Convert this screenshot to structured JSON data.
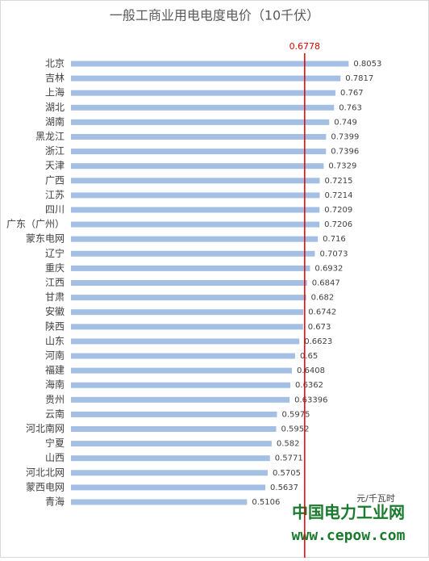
{
  "chart_data": {
    "type": "barh",
    "title": "一般工商业用电电度电价（10千伏）",
    "categories": [
      "北京",
      "吉林",
      "上海",
      "湖北",
      "湖南",
      "黑龙江",
      "浙江",
      "天津",
      "广西",
      "江苏",
      "四川",
      "广东（广州）",
      "蒙东电网",
      "辽宁",
      "重庆",
      "江西",
      "甘肃",
      "安徽",
      "陕西",
      "山东",
      "河南",
      "福建",
      "海南",
      "贵州",
      "云南",
      "河北南网",
      "宁夏",
      "山西",
      "河北北网",
      "蒙西电网",
      "青海"
    ],
    "values": [
      0.8053,
      0.7817,
      0.767,
      0.763,
      0.749,
      0.7399,
      0.7396,
      0.7329,
      0.7215,
      0.7214,
      0.7209,
      0.7206,
      0.716,
      0.7073,
      0.6932,
      0.6847,
      0.682,
      0.6742,
      0.673,
      0.6623,
      0.65,
      0.6408,
      0.6362,
      0.63396,
      0.5975,
      0.5952,
      0.582,
      0.5771,
      0.5705,
      0.5637,
      0.5106
    ],
    "color": "#a3c0e4",
    "xlim": [
      0,
      1
    ],
    "reference_line": {
      "value": 0.6778,
      "color": "#e00000"
    },
    "unit_label": "元/千瓦时",
    "watermark": {
      "name": "中国电力工业网",
      "url": "www.cepow.com",
      "color": "#1a7a2e"
    }
  }
}
